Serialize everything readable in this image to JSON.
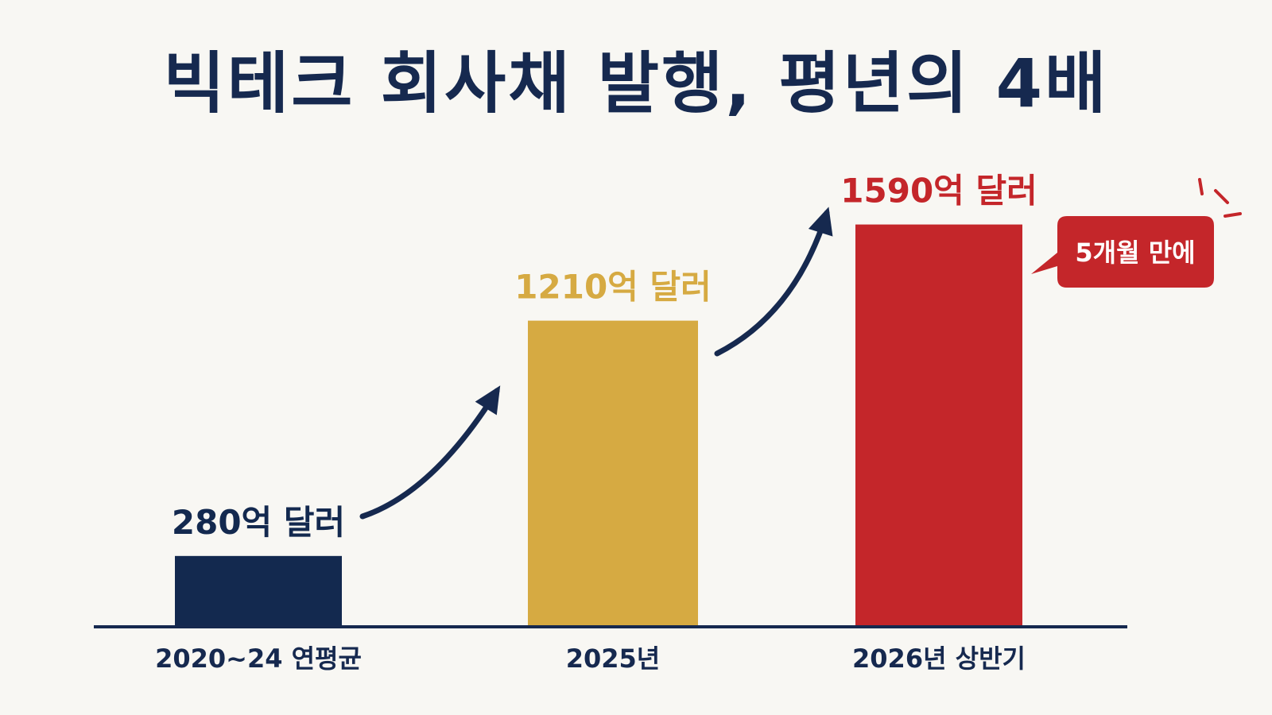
{
  "chart_data": {
    "type": "bar",
    "title": "빅테크 회사채 발행, 평년의 4배",
    "categories": [
      "2020~24 연평균",
      "2025년",
      "2026년 상반기"
    ],
    "values": [
      280,
      1210,
      1590
    ],
    "unit": "억 달러",
    "value_labels": [
      "280억 달러",
      "1210억 달러",
      "1590억 달러"
    ],
    "ylim": [
      0,
      1750
    ],
    "grid": false,
    "legend": "none",
    "colors": [
      "#13294f",
      "#d6aa42",
      "#c4262a"
    ],
    "callout": "5개월 만에"
  },
  "colors": {
    "title": "#16294f",
    "axis": "#16294f",
    "arrow": "#16294f",
    "callout_bg": "#c4262a",
    "background": "#f8f7f3"
  }
}
